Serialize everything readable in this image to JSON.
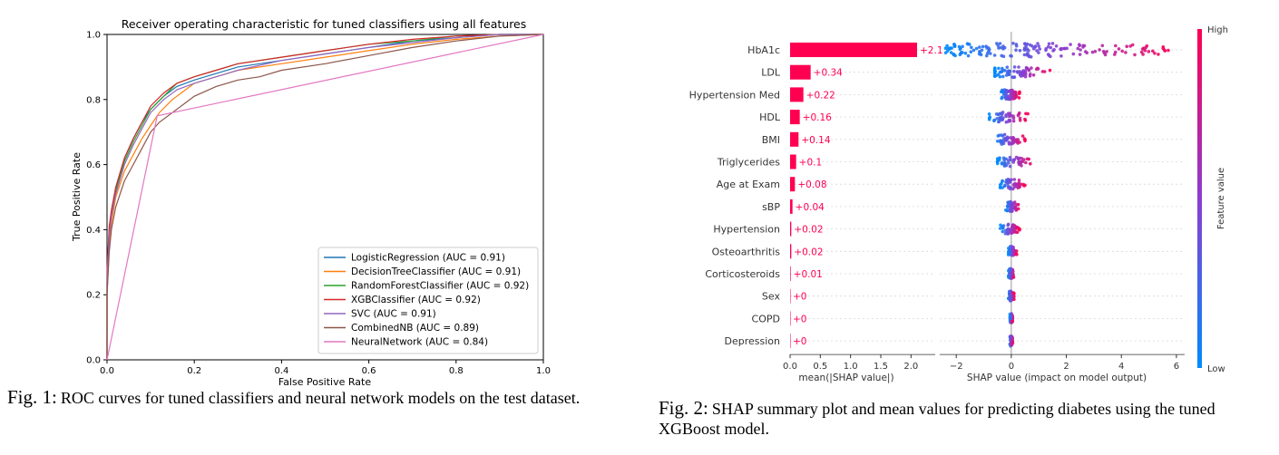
{
  "figures": {
    "fig1_caption_label": "Fig. 1:",
    "fig1_caption_text": "ROC curves for tuned classifiers and neural network models on the test dataset.",
    "fig2_caption_label": "Fig. 2:",
    "fig2_caption_text": "SHAP summary plot and mean values for predicting diabetes using the tuned XGBoost model."
  },
  "chart_data": [
    {
      "type": "line",
      "title": "Receiver operating characteristic for tuned classifiers using all features",
      "xlabel": "False Positive Rate",
      "ylabel": "True Positive Rate",
      "xlim": [
        0,
        1
      ],
      "ylim": [
        0,
        1
      ],
      "xticks": [
        "0.0",
        "0.2",
        "0.4",
        "0.6",
        "0.8",
        "1.0"
      ],
      "yticks": [
        "0.0",
        "0.2",
        "0.4",
        "0.6",
        "0.8",
        "1.0"
      ],
      "grid": false,
      "legend_position": "lower-right",
      "series": [
        {
          "name": "LogisticRegression (AUC = 0.91)",
          "color": "#1f77b4",
          "x": [
            0,
            0,
            0.005,
            0.01,
            0.02,
            0.04,
            0.06,
            0.08,
            0.1,
            0.13,
            0.16,
            0.2,
            0.25,
            0.3,
            0.4,
            0.5,
            0.6,
            0.7,
            0.8,
            0.9,
            1.0
          ],
          "y": [
            0,
            0.25,
            0.4,
            0.45,
            0.53,
            0.62,
            0.68,
            0.73,
            0.77,
            0.81,
            0.84,
            0.86,
            0.88,
            0.9,
            0.92,
            0.94,
            0.96,
            0.98,
            0.99,
            1.0,
            1.0
          ]
        },
        {
          "name": "DecisionTreeClassifier (AUC = 0.91)",
          "color": "#ff7f0e",
          "x": [
            0,
            0,
            0.005,
            0.01,
            0.02,
            0.04,
            0.06,
            0.08,
            0.1,
            0.12,
            0.15,
            0.18,
            0.2,
            0.25,
            0.3,
            0.4,
            0.5,
            0.6,
            0.7,
            0.8,
            0.9,
            1.0
          ],
          "y": [
            0,
            0.2,
            0.35,
            0.42,
            0.5,
            0.58,
            0.63,
            0.68,
            0.72,
            0.76,
            0.8,
            0.83,
            0.85,
            0.87,
            0.89,
            0.91,
            0.93,
            0.95,
            0.97,
            0.985,
            0.995,
            1.0
          ]
        },
        {
          "name": "RandomForestClassifier (AUC = 0.92)",
          "color": "#2ca02c",
          "x": [
            0,
            0,
            0.005,
            0.01,
            0.02,
            0.04,
            0.06,
            0.08,
            0.1,
            0.13,
            0.16,
            0.2,
            0.25,
            0.3,
            0.4,
            0.5,
            0.6,
            0.7,
            0.8,
            0.9,
            1.0
          ],
          "y": [
            0,
            0.26,
            0.4,
            0.45,
            0.52,
            0.61,
            0.67,
            0.72,
            0.77,
            0.81,
            0.85,
            0.87,
            0.89,
            0.91,
            0.93,
            0.95,
            0.97,
            0.98,
            0.995,
            1.0,
            1.0
          ]
        },
        {
          "name": "XGBClassifier (AUC = 0.92)",
          "color": "#d62728",
          "x": [
            0,
            0,
            0.005,
            0.01,
            0.02,
            0.04,
            0.06,
            0.08,
            0.1,
            0.13,
            0.16,
            0.2,
            0.25,
            0.3,
            0.4,
            0.5,
            0.6,
            0.7,
            0.8,
            0.9,
            1.0
          ],
          "y": [
            0,
            0.27,
            0.41,
            0.46,
            0.53,
            0.62,
            0.68,
            0.73,
            0.78,
            0.82,
            0.85,
            0.87,
            0.89,
            0.91,
            0.93,
            0.95,
            0.97,
            0.985,
            0.995,
            1.0,
            1.0
          ]
        },
        {
          "name": "SVC (AUC = 0.91)",
          "color": "#9467bd",
          "x": [
            0,
            0,
            0.005,
            0.01,
            0.02,
            0.04,
            0.06,
            0.08,
            0.1,
            0.13,
            0.16,
            0.2,
            0.25,
            0.3,
            0.4,
            0.5,
            0.6,
            0.7,
            0.8,
            0.9,
            1.0
          ],
          "y": [
            0,
            0.24,
            0.38,
            0.44,
            0.51,
            0.6,
            0.66,
            0.71,
            0.76,
            0.8,
            0.83,
            0.85,
            0.87,
            0.89,
            0.92,
            0.94,
            0.96,
            0.975,
            0.99,
            1.0,
            1.0
          ]
        },
        {
          "name": "CombinedNB (AUC = 0.89)",
          "color": "#8c564b",
          "x": [
            0,
            0,
            0.005,
            0.01,
            0.02,
            0.04,
            0.06,
            0.08,
            0.1,
            0.12,
            0.15,
            0.18,
            0.2,
            0.25,
            0.3,
            0.35,
            0.4,
            0.5,
            0.6,
            0.7,
            0.8,
            0.9,
            1.0
          ],
          "y": [
            0,
            0.2,
            0.33,
            0.4,
            0.47,
            0.55,
            0.6,
            0.65,
            0.7,
            0.73,
            0.76,
            0.79,
            0.81,
            0.84,
            0.86,
            0.87,
            0.89,
            0.91,
            0.935,
            0.96,
            0.98,
            0.995,
            1.0
          ]
        },
        {
          "name": "NeuralNetwork (AUC = 0.84)",
          "color": "#e377c2",
          "x": [
            0,
            0.115,
            1.0
          ],
          "y": [
            0,
            0.75,
            1.0
          ]
        }
      ]
    },
    {
      "type": "bar",
      "orientation": "horizontal",
      "categories": [
        "HbA1c",
        "LDL",
        "Hypertension Med",
        "HDL",
        "BMI",
        "Triglycerides",
        "Age at Exam",
        "sBP",
        "Hypertension",
        "Osteoarthritis",
        "Corticosteroids",
        "Sex",
        "COPD",
        "Depression"
      ],
      "values": [
        2.1,
        0.34,
        0.22,
        0.16,
        0.14,
        0.1,
        0.08,
        0.04,
        0.02,
        0.02,
        0.01,
        0,
        0,
        0
      ],
      "value_labels": [
        "+2.1",
        "+0.34",
        "+0.22",
        "+0.16",
        "+0.14",
        "+0.1",
        "+0.08",
        "+0.04",
        "+0.02",
        "+0.02",
        "+0.01",
        "+0",
        "+0",
        "+0"
      ],
      "xlabel": "mean(|SHAP value|)",
      "xticks": [
        "0.0",
        "0.5",
        "1.0",
        "1.5",
        "2.0"
      ],
      "xlim": [
        0,
        2.4
      ],
      "bar_color": "#ff0051"
    },
    {
      "type": "scatter",
      "subtype": "beeswarm",
      "categories": [
        "HbA1c",
        "LDL",
        "Hypertension Med",
        "HDL",
        "BMI",
        "Triglycerides",
        "Age at Exam",
        "sBP",
        "Hypertension",
        "Osteoarthritis",
        "Corticosteroids",
        "Sex",
        "COPD",
        "Depression"
      ],
      "xlabel": "SHAP value (impact on model output)",
      "xticks": [
        "−2",
        "0",
        "2",
        "4",
        "6"
      ],
      "xlim": [
        -2.6,
        6.3
      ],
      "ranges": [
        [
          -2.4,
          6.0
        ],
        [
          -0.6,
          1.5
        ],
        [
          -0.4,
          0.3
        ],
        [
          -0.8,
          0.6
        ],
        [
          -0.6,
          0.5
        ],
        [
          -0.5,
          0.8
        ],
        [
          -0.4,
          0.5
        ],
        [
          -0.2,
          0.3
        ],
        [
          -0.4,
          0.3
        ],
        [
          -0.1,
          0.2
        ],
        [
          -0.1,
          0.1
        ],
        [
          -0.1,
          0.1
        ],
        [
          -0.05,
          0.05
        ],
        [
          -0.05,
          0.05
        ]
      ],
      "colorbar_label": "Feature value",
      "colorbar_high": "High",
      "colorbar_low": "Low",
      "color_low": "#008bfb",
      "color_high": "#ff0051"
    }
  ]
}
